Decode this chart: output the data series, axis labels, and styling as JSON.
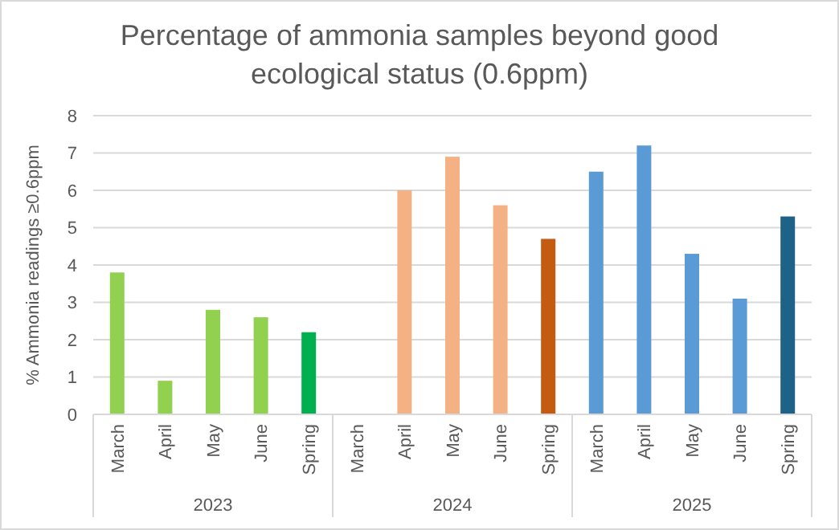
{
  "chart_data": {
    "type": "bar",
    "title": "Percentage of ammonia samples beyond good ecological status (0.6ppm)",
    "ylabel": "% Ammonia readings ≥0.6ppm",
    "categories": [
      "March",
      "April",
      "May",
      "June",
      "Spring",
      "March",
      "April",
      "May",
      "June",
      "Spring",
      "March",
      "April",
      "May",
      "June",
      "Spring"
    ],
    "values": [
      3.8,
      0.9,
      2.8,
      2.6,
      2.2,
      null,
      6.0,
      6.9,
      5.6,
      4.7,
      6.5,
      7.2,
      4.3,
      3.1,
      5.3
    ],
    "colors": [
      "#92d050",
      "#92d050",
      "#92d050",
      "#92d050",
      "#00b050",
      null,
      "#f4b183",
      "#f4b183",
      "#f4b183",
      "#c55a11",
      "#5b9bd5",
      "#5b9bd5",
      "#5b9bd5",
      "#5b9bd5",
      "#1f6287"
    ],
    "annotations": [
      "2023",
      "2024",
      "2025"
    ],
    "ylim": [
      0,
      8
    ],
    "yticks": [
      0,
      1,
      2,
      3,
      4,
      5,
      6,
      7,
      8
    ],
    "grid": "y"
  }
}
